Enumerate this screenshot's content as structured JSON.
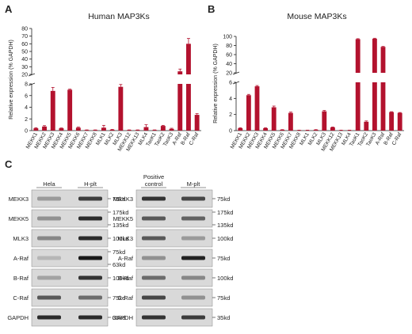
{
  "panels": {
    "a_letter": "A",
    "b_letter": "B",
    "c_letter": "C"
  },
  "chart_data": [
    {
      "type": "bar",
      "title": "Human MAP3Ks",
      "ylabel": "Relative expression (% GAPDH)",
      "color": "#b3122e",
      "broken_axis": {
        "lower": [
          0,
          8
        ],
        "upper": [
          20,
          80
        ]
      },
      "lower_ticks": [
        0,
        2,
        4,
        6,
        8
      ],
      "upper_ticks": [
        20,
        30,
        40,
        50,
        60,
        70,
        80
      ],
      "categories": [
        "MEKK1",
        "MEKK2",
        "MEKK3",
        "MEKK4",
        "MEKK5",
        "MEKK6",
        "MEKK7",
        "MEKK8",
        "MLK1",
        "MLK2",
        "MLK3",
        "MEKK12",
        "MEKK13",
        "MLK4",
        "TaoK1",
        "TaoK2",
        "TaoK3",
        "A-Raf",
        "B-Raf",
        "C-Raf"
      ],
      "values": [
        0.4,
        0.7,
        6.8,
        0.4,
        7.0,
        0.5,
        0.1,
        0.1,
        0.5,
        0.15,
        7.5,
        0.1,
        0.1,
        0.6,
        0.1,
        0.8,
        0.3,
        24,
        60,
        2.7
      ],
      "errors": [
        0.1,
        0.15,
        0.6,
        0.05,
        0.1,
        0.1,
        0.02,
        0.02,
        0.4,
        0.05,
        0.4,
        0.02,
        0.02,
        0.4,
        0.02,
        0.1,
        0.1,
        3,
        7,
        0.2
      ]
    },
    {
      "type": "bar",
      "title": "Mouse MAP3Ks",
      "ylabel": "Relative expression (% GAPDH)",
      "color": "#b3122e",
      "broken_axis": {
        "lower": [
          0,
          6
        ],
        "upper": [
          20,
          100
        ]
      },
      "lower_ticks": [
        0,
        2,
        4,
        6
      ],
      "upper_ticks": [
        20,
        40,
        60,
        80,
        100
      ],
      "categories": [
        "MEKK1",
        "MEKK2",
        "MEKK3",
        "MEKK4",
        "MEKK5",
        "MEKK6",
        "MEKK7",
        "MEKK8",
        "MLK1",
        "MLK2",
        "MLK3",
        "MEKK12",
        "MEKK13",
        "MLK4",
        "TaoK1",
        "TaoK2",
        "TaoK3",
        "A-Raf",
        "B-Raf",
        "C-Raf"
      ],
      "values": [
        0.3,
        4.4,
        5.5,
        0.3,
        2.9,
        0.1,
        2.2,
        0.05,
        0.05,
        0.1,
        2.4,
        0.4,
        0.05,
        0.05,
        94,
        1.1,
        95,
        77,
        2.3,
        2.2
      ],
      "errors": [
        0.05,
        0.1,
        0.1,
        0.05,
        0.15,
        0.02,
        0.1,
        0.01,
        0.01,
        0.02,
        0.1,
        0.05,
        0.01,
        0.01,
        1,
        0.1,
        1,
        1,
        0.05,
        0.05
      ]
    }
  ],
  "blots": {
    "left": {
      "headers": [
        "Hela",
        "H-plt"
      ],
      "rows": [
        {
          "label": "MEKK3",
          "kd": [
            "75kd"
          ],
          "a": 0.25,
          "b": 0.75
        },
        {
          "label": "MEKK5",
          "kd": [
            "175kd",
            "135kd"
          ],
          "a": 0.3,
          "b": 0.85
        },
        {
          "label": "MLK3",
          "kd": [
            "100kd"
          ],
          "a": 0.35,
          "b": 0.85
        },
        {
          "label": "A-Raf",
          "kd": [
            "75kd",
            "63kd"
          ],
          "a": 0.1,
          "b": 0.95
        },
        {
          "label": "B-Raf",
          "kd": [
            "100kd"
          ],
          "a": 0.2,
          "b": 0.8
        },
        {
          "label": "C-Raf",
          "kd": [
            "75kd"
          ],
          "a": 0.6,
          "b": 0.5
        },
        {
          "label": "GAPDH",
          "kd": [
            "35kd"
          ],
          "a": 0.85,
          "b": 0.85
        }
      ]
    },
    "right": {
      "headers": [
        "Positive\ncontrol",
        "M-plt"
      ],
      "header_line1": "Positive",
      "header_line2": "control",
      "header_b": "M-plt",
      "rows": [
        {
          "label": "MEKK3",
          "kd": [
            "75kd"
          ],
          "a": 0.8,
          "b": 0.7
        },
        {
          "label": "MEKK5",
          "kd": [
            "175kd",
            "135kd"
          ],
          "a": 0.6,
          "b": 0.55
        },
        {
          "label": "MLK3",
          "kd": [
            "100kd"
          ],
          "a": 0.6,
          "b": 0.25
        },
        {
          "label": "A-Raf",
          "kd": [
            "75kd"
          ],
          "a": 0.3,
          "b": 0.9
        },
        {
          "label": "B-Raf",
          "kd": [
            "100kd"
          ],
          "a": 0.5,
          "b": 0.35
        },
        {
          "label": "C-Raf",
          "kd": [
            "75kd"
          ],
          "a": 0.7,
          "b": 0.3
        },
        {
          "label": "GAPDH",
          "kd": [
            "35kd"
          ],
          "a": 0.8,
          "b": 0.75
        }
      ]
    }
  }
}
